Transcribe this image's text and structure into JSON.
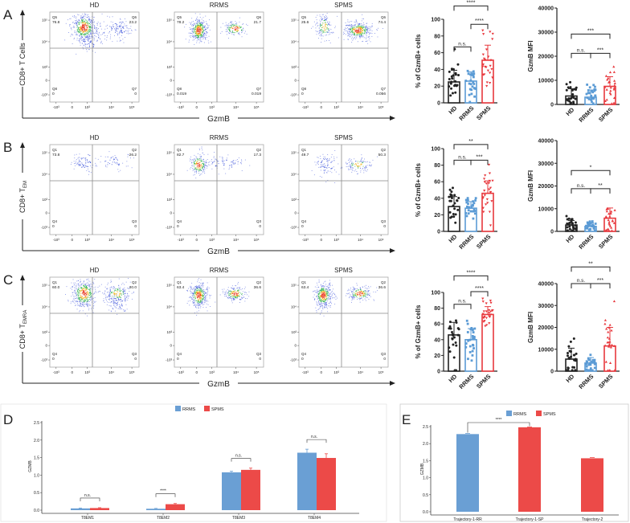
{
  "panel_letters": [
    "A",
    "B",
    "C",
    "D",
    "E"
  ],
  "flow": {
    "x_axis_label": "GzmB",
    "x_ticks": [
      "-10³",
      "0",
      "10³",
      "10⁴",
      "10⁵"
    ],
    "y_ticks": [
      "10⁵",
      "10⁴",
      "10³",
      "0",
      "-10³"
    ],
    "groups": [
      "HD",
      "RRMS",
      "SPMS"
    ],
    "rows": [
      {
        "y_label": "CD8+ T Cells",
        "y_label_sub": "",
        "quadrant_names": [
          "Q5",
          "Q6",
          "Q8",
          "Q7"
        ],
        "values": [
          [
            "76.8",
            "23.2",
            "0",
            "0"
          ],
          [
            "78.2",
            "21.7",
            "0.019",
            "0.019"
          ],
          [
            "25.6",
            "74.4",
            "0",
            "0.056"
          ]
        ]
      },
      {
        "y_label": "CD8+ T",
        "y_label_sub": "EM",
        "quadrant_names": [
          "Q1",
          "Q2",
          "Q4",
          "Q3"
        ],
        "values": [
          [
            "73.8",
            "26.2",
            "0",
            "0"
          ],
          [
            "82.7",
            "17.3",
            "0",
            "0"
          ],
          [
            "49.7",
            "50.3",
            "0",
            "0"
          ]
        ]
      },
      {
        "y_label": "CD8+ T",
        "y_label_sub": "EMRA",
        "quadrant_names": [
          "Q1",
          "Q2",
          "Q4",
          "Q3"
        ],
        "values": [
          [
            "60.0",
            "40.0",
            "0",
            "0"
          ],
          [
            "63.4",
            "36.6",
            "0",
            "0"
          ],
          [
            "63.4",
            "36.6",
            "0",
            "0"
          ]
        ]
      }
    ]
  },
  "colors": {
    "HD": "#222222",
    "RRMS": "#5b9bd5",
    "SPMS": "#e8383d",
    "legend_RRMS": "#6a9fd4",
    "legend_SPMS": "#ec4a48"
  },
  "chart_data": [
    {
      "type": "bar",
      "panel": "A",
      "ylabel": "% of GzmB+ cells",
      "categories": [
        "HD",
        "RRMS",
        "SPMS"
      ],
      "values": [
        25,
        26,
        51
      ],
      "sd": [
        14,
        11,
        18
      ],
      "n": 25,
      "ylim": [
        0,
        100
      ],
      "yticks": [
        "0",
        "20",
        "40",
        "60",
        "80",
        "100"
      ],
      "significance": [
        {
          "pair": [
            0,
            2
          ],
          "label": "****"
        },
        {
          "pair": [
            0,
            1
          ],
          "label": "n.s."
        },
        {
          "pair": [
            1,
            2
          ],
          "label": "****"
        }
      ]
    },
    {
      "type": "bar",
      "panel": "A",
      "ylabel": "GzmB MFI",
      "categories": [
        "HD",
        "RRMS",
        "SPMS"
      ],
      "values": [
        3500,
        3000,
        7500
      ],
      "sd": [
        3000,
        3000,
        4000
      ],
      "n": 25,
      "ylim": [
        0,
        40000
      ],
      "yticks": [
        "0",
        "10000",
        "20000",
        "30000",
        "40000"
      ],
      "significance": [
        {
          "pair": [
            0,
            2
          ],
          "label": "***"
        },
        {
          "pair": [
            0,
            1
          ],
          "label": "n.s."
        },
        {
          "pair": [
            1,
            2
          ],
          "label": "***"
        }
      ]
    },
    {
      "type": "bar",
      "panel": "B",
      "ylabel": "% of GzmB+ cells",
      "categories": [
        "HD",
        "RRMS",
        "SPMS"
      ],
      "values": [
        30,
        28,
        46
      ],
      "sd": [
        12,
        8,
        15
      ],
      "n": 25,
      "ylim": [
        0,
        100
      ],
      "yticks": [
        "0",
        "20",
        "40",
        "60",
        "80",
        "100"
      ],
      "significance": [
        {
          "pair": [
            0,
            2
          ],
          "label": "**"
        },
        {
          "pair": [
            0,
            1
          ],
          "label": "n.s."
        },
        {
          "pair": [
            1,
            2
          ],
          "label": "***"
        }
      ]
    },
    {
      "type": "bar",
      "panel": "B",
      "ylabel": "GzmB MFI",
      "categories": [
        "HD",
        "RRMS",
        "SPMS"
      ],
      "values": [
        2800,
        2200,
        5800
      ],
      "sd": [
        2000,
        1500,
        4500
      ],
      "n": 25,
      "ylim": [
        0,
        40000
      ],
      "yticks": [
        "0",
        "10000",
        "20000",
        "30000",
        "40000"
      ],
      "significance": [
        {
          "pair": [
            0,
            2
          ],
          "label": "*"
        },
        {
          "pair": [
            0,
            1
          ],
          "label": "n.s."
        },
        {
          "pair": [
            1,
            2
          ],
          "label": "**"
        }
      ]
    },
    {
      "type": "bar",
      "panel": "C",
      "ylabel": "% of GzmB+ cells",
      "categories": [
        "HD",
        "RRMS",
        "SPMS"
      ],
      "values": [
        46,
        40,
        72
      ],
      "sd": [
        16,
        14,
        10
      ],
      "n": 25,
      "ylim": [
        0,
        100
      ],
      "yticks": [
        "0",
        "20",
        "40",
        "60",
        "80",
        "100"
      ],
      "significance": [
        {
          "pair": [
            0,
            2
          ],
          "label": "****"
        },
        {
          "pair": [
            0,
            1
          ],
          "label": "n.s."
        },
        {
          "pair": [
            1,
            2
          ],
          "label": "****"
        }
      ]
    },
    {
      "type": "bar",
      "panel": "C",
      "ylabel": "GzmB MFI",
      "categories": [
        "HD",
        "RRMS",
        "SPMS"
      ],
      "values": [
        5500,
        3700,
        11500
      ],
      "sd": [
        5000,
        2500,
        8500
      ],
      "n": 25,
      "ylim": [
        0,
        40000
      ],
      "yticks": [
        "0",
        "10000",
        "20000",
        "30000",
        "40000"
      ],
      "significance": [
        {
          "pair": [
            0,
            2
          ],
          "label": "**"
        },
        {
          "pair": [
            0,
            1
          ],
          "label": "n.s."
        },
        {
          "pair": [
            1,
            2
          ],
          "label": "***"
        }
      ]
    },
    {
      "type": "bar",
      "panel": "D",
      "ylabel": "GZMB",
      "legend": [
        "RRMS",
        "SPMS"
      ],
      "legend_position": "top-center",
      "categories": [
        "T8EM1",
        "T8EM2",
        "T8EM3",
        "T8EM4"
      ],
      "series": [
        {
          "name": "RRMS",
          "values": [
            0.05,
            0.04,
            1.08,
            1.64
          ],
          "err": [
            0.01,
            0.01,
            0.03,
            0.1
          ]
        },
        {
          "name": "SPMS",
          "values": [
            0.06,
            0.17,
            1.15,
            1.49
          ],
          "err": [
            0.01,
            0.02,
            0.05,
            0.12
          ]
        }
      ],
      "ylim": [
        0,
        2.5
      ],
      "yticks": [
        "0.0",
        "0.5",
        "1.0",
        "1.5",
        "2.0",
        "2.5"
      ],
      "significance": [
        "n.s.",
        "****",
        "n.s.",
        "n.s."
      ]
    },
    {
      "type": "bar",
      "panel": "E",
      "ylabel": "GZMB",
      "legend": [
        "RRMS",
        "SPMS"
      ],
      "legend_position": "top-center",
      "categories": [
        "Trajectory-1-RR",
        "Trajectory-1-SP",
        "Trajectory-2"
      ],
      "values": [
        2.28,
        2.48,
        1.57
      ],
      "err": [
        0.02,
        0.01,
        0.02
      ],
      "series_of_bar": [
        "RRMS",
        "SPMS",
        "SPMS"
      ],
      "ylim": [
        0,
        2.5
      ],
      "yticks": [
        "0.0",
        "0.5",
        "1.0",
        "1.5",
        "2.0",
        "2.5"
      ],
      "significance": [
        {
          "pair": [
            0,
            1
          ],
          "label": "****"
        }
      ]
    }
  ]
}
